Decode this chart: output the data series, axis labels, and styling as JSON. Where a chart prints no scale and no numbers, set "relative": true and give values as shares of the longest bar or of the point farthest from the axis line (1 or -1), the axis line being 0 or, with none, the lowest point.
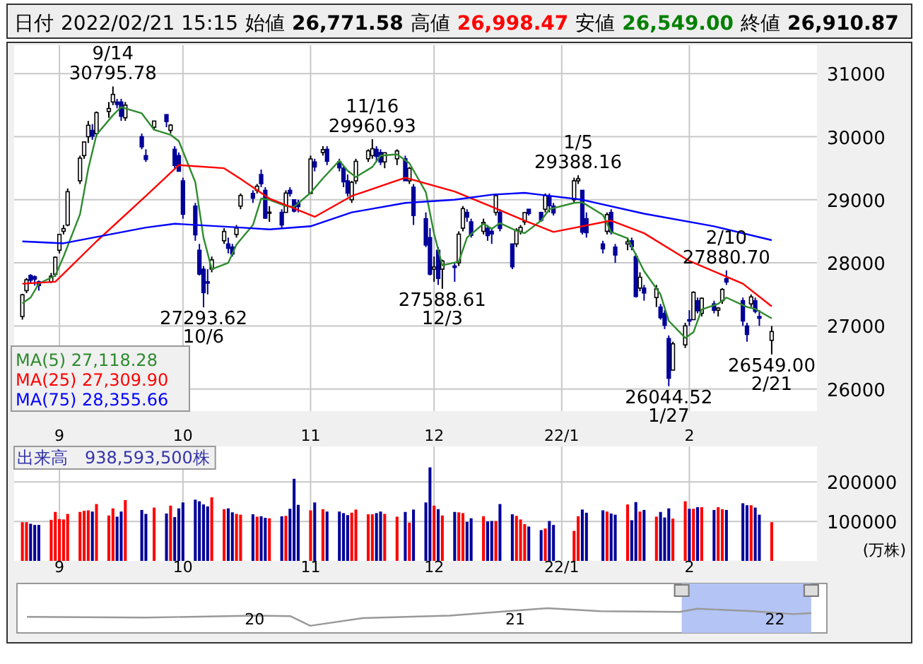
{
  "chart_data": [
    {
      "type": "candlestick",
      "annotations": [
        "日付",
        "2022/02/21 15:15",
        "始値",
        "26,771.58",
        "高値",
        "26,998.47",
        "安値",
        "26,549.00",
        "終値",
        "26,910.87",
        {
          "text": "9/14\n30795.78",
          "x": "2021-09-14",
          "y": 30795.78
        },
        {
          "text": "27293.62\n10/6",
          "x": "2021-10-06",
          "y": 27293.62
        },
        {
          "text": "11/16\n29960.93",
          "x": "2021-11-16",
          "y": 29960.93
        },
        {
          "text": "27588.61\n12/3",
          "x": "2021-12-03",
          "y": 27588.61
        },
        {
          "text": "1/5\n29388.16",
          "x": "2022-01-05",
          "y": 29388.16
        },
        {
          "text": "26044.52\n1/27",
          "x": "2022-01-27",
          "y": 26044.52
        },
        {
          "text": "2/10\n27880.70",
          "x": "2022-02-10",
          "y": 27880.7
        },
        {
          "text": "26549.00\n2/21",
          "x": "2022-02-21",
          "y": 26549.0
        }
      ],
      "x": [
        "2021-08-23",
        "2021-08-24",
        "2021-08-25",
        "2021-08-26",
        "2021-08-27",
        "2021-08-30",
        "2021-08-31",
        "2021-09-01",
        "2021-09-02",
        "2021-09-03",
        "2021-09-06",
        "2021-09-07",
        "2021-09-08",
        "2021-09-09",
        "2021-09-10",
        "2021-09-13",
        "2021-09-14",
        "2021-09-15",
        "2021-09-16",
        "2021-09-17",
        "2021-09-21",
        "2021-09-22",
        "2021-09-24",
        "2021-09-27",
        "2021-09-28",
        "2021-09-29",
        "2021-09-30",
        "2021-10-01",
        "2021-10-04",
        "2021-10-05",
        "2021-10-06",
        "2021-10-07",
        "2021-10-08",
        "2021-10-11",
        "2021-10-12",
        "2021-10-13",
        "2021-10-14",
        "2021-10-15",
        "2021-10-18",
        "2021-10-19",
        "2021-10-20",
        "2021-10-21",
        "2021-10-22",
        "2021-10-25",
        "2021-10-26",
        "2021-10-27",
        "2021-10-28",
        "2021-10-29",
        "2021-11-01",
        "2021-11-02",
        "2021-11-04",
        "2021-11-05",
        "2021-11-08",
        "2021-11-09",
        "2021-11-10",
        "2021-11-11",
        "2021-11-12",
        "2021-11-15",
        "2021-11-16",
        "2021-11-17",
        "2021-11-18",
        "2021-11-19",
        "2021-11-22",
        "2021-11-24",
        "2021-11-25",
        "2021-11-26",
        "2021-11-29",
        "2021-11-30",
        "2021-12-01",
        "2021-12-02",
        "2021-12-03",
        "2021-12-06",
        "2021-12-07",
        "2021-12-08",
        "2021-12-09",
        "2021-12-10",
        "2021-12-13",
        "2021-12-14",
        "2021-12-15",
        "2021-12-16",
        "2021-12-17",
        "2021-12-20",
        "2021-12-21",
        "2021-12-22",
        "2021-12-23",
        "2021-12-24",
        "2021-12-27",
        "2021-12-28",
        "2021-12-29",
        "2021-12-30",
        "2022-01-04",
        "2022-01-05",
        "2022-01-06",
        "2022-01-07",
        "2022-01-11",
        "2022-01-12",
        "2022-01-13",
        "2022-01-14",
        "2022-01-17",
        "2022-01-18",
        "2022-01-19",
        "2022-01-20",
        "2022-01-21",
        "2022-01-24",
        "2022-01-25",
        "2022-01-26",
        "2022-01-27",
        "2022-01-28",
        "2022-01-31",
        "2022-02-01",
        "2022-02-02",
        "2022-02-03",
        "2022-02-04",
        "2022-02-07",
        "2022-02-08",
        "2022-02-09",
        "2022-02-10",
        "2022-02-14",
        "2022-02-15",
        "2022-02-16",
        "2022-02-17",
        "2022-02-18",
        "2022-02-21"
      ],
      "ohlc": [
        [
          27150,
          27510,
          27100,
          27494
        ],
        [
          27560,
          27760,
          27520,
          27732
        ],
        [
          27800,
          27820,
          27680,
          27724
        ],
        [
          27780,
          27800,
          27640,
          27742
        ],
        [
          27700,
          27720,
          27560,
          27641
        ],
        [
          27700,
          27840,
          27680,
          27789
        ],
        [
          27820,
          28100,
          27780,
          28089
        ],
        [
          28200,
          28460,
          28150,
          28451
        ],
        [
          28500,
          28600,
          28450,
          28543
        ],
        [
          28600,
          29180,
          28580,
          29128
        ],
        [
          29300,
          29700,
          29250,
          29660
        ],
        [
          29700,
          29920,
          29650,
          29916
        ],
        [
          30000,
          30250,
          29900,
          30181
        ],
        [
          30100,
          30200,
          29950,
          30008
        ],
        [
          30050,
          30400,
          30000,
          30381
        ],
        [
          30400,
          30550,
          30300,
          30447
        ],
        [
          30550,
          30795.78,
          30500,
          30670
        ],
        [
          30550,
          30600,
          30450,
          30511
        ],
        [
          30550,
          30600,
          30250,
          30323
        ],
        [
          30300,
          30550,
          30250,
          30500
        ],
        [
          30000,
          30050,
          29800,
          29839
        ],
        [
          29700,
          29800,
          29600,
          29639
        ],
        [
          30150,
          30250,
          30100,
          30248
        ],
        [
          30350,
          30350,
          30150,
          30240
        ],
        [
          30100,
          30200,
          30050,
          30183
        ],
        [
          29800,
          29850,
          29500,
          29544
        ],
        [
          29700,
          29750,
          29450,
          29452
        ],
        [
          29300,
          29350,
          28700,
          28771
        ],
        [
          28900,
          28950,
          28350,
          28444
        ],
        [
          28200,
          28300,
          27800,
          27822
        ],
        [
          27900,
          27950,
          27293.62,
          27528
        ],
        [
          27700,
          27900,
          27500,
          27678
        ],
        [
          27900,
          28100,
          27850,
          28048
        ],
        [
          28350,
          28550,
          28300,
          28498
        ],
        [
          28300,
          28400,
          28150,
          28230
        ],
        [
          28250,
          28300,
          28100,
          28140
        ],
        [
          28450,
          28600,
          28400,
          28550
        ],
        [
          28900,
          29100,
          28850,
          29068
        ],
        [
          29100,
          29150,
          28950,
          29025
        ],
        [
          29150,
          29250,
          29100,
          29215
        ],
        [
          29400,
          29480,
          29200,
          29255
        ],
        [
          29150,
          29200,
          28700,
          28708
        ],
        [
          28800,
          28900,
          28650,
          28804
        ],
        [
          28800,
          28850,
          28550,
          28600
        ],
        [
          28800,
          29150,
          28800,
          29106
        ],
        [
          29150,
          29200,
          29050,
          29098
        ],
        [
          29000,
          29000,
          28800,
          28820
        ],
        [
          28950,
          29000,
          28800,
          28892
        ],
        [
          29100,
          29700,
          29100,
          29647
        ],
        [
          29600,
          29650,
          29450,
          29520
        ],
        [
          29750,
          29850,
          29700,
          29794
        ],
        [
          29800,
          29850,
          29550,
          29611
        ],
        [
          29600,
          29650,
          29450,
          29507
        ],
        [
          29500,
          29550,
          29200,
          29285
        ],
        [
          29300,
          29400,
          29050,
          29106
        ],
        [
          29000,
          29300,
          28950,
          29277
        ],
        [
          29300,
          29650,
          29250,
          29609
        ],
        [
          29650,
          29800,
          29600,
          29776
        ],
        [
          29700,
          29960.93,
          29650,
          29808
        ],
        [
          29800,
          29850,
          29600,
          29688
        ],
        [
          29750,
          29800,
          29550,
          29598
        ],
        [
          29600,
          29750,
          29500,
          29745
        ],
        [
          29650,
          29800,
          29550,
          29774
        ],
        [
          29650,
          29700,
          29300,
          29302
        ],
        [
          29300,
          29520,
          29250,
          29499
        ],
        [
          29200,
          29250,
          28600,
          28751
        ],
        [
          28700,
          28800,
          28250,
          28283
        ],
        [
          28400,
          28550,
          27800,
          27821
        ],
        [
          27900,
          28100,
          27700,
          27935
        ],
        [
          28200,
          28250,
          27650,
          27753
        ],
        [
          27900,
          28050,
          27588.61,
          28029
        ],
        [
          27950,
          28000,
          27700,
          27927
        ],
        [
          28000,
          28500,
          27950,
          28455
        ],
        [
          28550,
          28900,
          28500,
          28860
        ],
        [
          28800,
          28850,
          28650,
          28725
        ],
        [
          28650,
          28700,
          28400,
          28437
        ],
        [
          28500,
          28700,
          28450,
          28640
        ],
        [
          28550,
          28600,
          28350,
          28432
        ],
        [
          28500,
          28550,
          28300,
          28459
        ],
        [
          28800,
          29100,
          28750,
          29066
        ],
        [
          28800,
          28850,
          28500,
          28545
        ],
        [
          28300,
          28300,
          27900,
          27937
        ],
        [
          28300,
          28550,
          28250,
          28517
        ],
        [
          28500,
          28600,
          28450,
          28562
        ],
        [
          28650,
          28800,
          28600,
          28798
        ],
        [
          28850,
          28850,
          28750,
          28782
        ],
        [
          28800,
          28800,
          28650,
          28676
        ],
        [
          28850,
          29100,
          28800,
          29069
        ],
        [
          29050,
          29100,
          28800,
          28906
        ],
        [
          28900,
          28950,
          28750,
          28791
        ],
        [
          29000,
          29350,
          28950,
          29301
        ],
        [
          29300,
          29388.16,
          29250,
          29332
        ],
        [
          29150,
          29150,
          28450,
          28487
        ],
        [
          28700,
          28800,
          28400,
          28478
        ],
        [
          28300,
          28350,
          28150,
          28222
        ],
        [
          28500,
          28800,
          28450,
          28765
        ],
        [
          28800,
          28850,
          28450,
          28489
        ],
        [
          28250,
          28300,
          28000,
          28124
        ],
        [
          28300,
          28400,
          28200,
          28333
        ],
        [
          28350,
          28400,
          28200,
          28257
        ],
        [
          28100,
          28150,
          27450,
          27467
        ],
        [
          27600,
          27850,
          27550,
          27772
        ],
        [
          27600,
          27650,
          27400,
          27522
        ],
        [
          27450,
          27650,
          27300,
          27588
        ],
        [
          27300,
          27350,
          27100,
          27131
        ],
        [
          27200,
          27250,
          26950,
          27011
        ],
        [
          26800,
          26850,
          26044.52,
          26170
        ],
        [
          26300,
          26750,
          26300,
          26717
        ],
        [
          26700,
          27050,
          26650,
          27001
        ],
        [
          27100,
          27250,
          27000,
          27078
        ],
        [
          27100,
          27550,
          27100,
          27533
        ],
        [
          27400,
          27450,
          27200,
          27241
        ],
        [
          27200,
          27450,
          27150,
          27439
        ],
        [
          27350,
          27400,
          27200,
          27248
        ],
        [
          27250,
          27300,
          27150,
          27284
        ],
        [
          27400,
          27600,
          27350,
          27579
        ],
        [
          27750,
          27880.7,
          27650,
          27696
        ],
        [
          27400,
          27450,
          27000,
          27079
        ],
        [
          27000,
          27050,
          26750,
          26865
        ],
        [
          27350,
          27500,
          27300,
          27460
        ],
        [
          27400,
          27450,
          27200,
          27232
        ],
        [
          27150,
          27250,
          27000,
          27122
        ],
        [
          26771.58,
          26998.47,
          26549.0,
          26910.87
        ]
      ],
      "series": [
        {
          "name": "MA(5)   27,118.28",
          "type": "line",
          "color": "#2e8b2e",
          "x": [
            "2021-08-23",
            "2021-08-25",
            "2021-08-27",
            "2021-08-31",
            "2021-09-02",
            "2021-09-06",
            "2021-09-08",
            "2021-09-10",
            "2021-09-14",
            "2021-09-16",
            "2021-09-21",
            "2021-09-24",
            "2021-09-28",
            "2021-09-30",
            "2021-10-04",
            "2021-10-06",
            "2021-10-08",
            "2021-10-12",
            "2021-10-14",
            "2021-10-18",
            "2021-10-20",
            "2021-10-22",
            "2021-10-26",
            "2021-10-28",
            "2021-11-01",
            "2021-11-04",
            "2021-11-08",
            "2021-11-10",
            "2021-11-12",
            "2021-11-16",
            "2021-11-18",
            "2021-11-22",
            "2021-11-25",
            "2021-11-29",
            "2021-12-01",
            "2021-12-03",
            "2021-12-07",
            "2021-12-09",
            "2021-12-13",
            "2021-12-15",
            "2021-12-17",
            "2021-12-21",
            "2021-12-23",
            "2021-12-27",
            "2021-12-29",
            "2022-01-04",
            "2022-01-06",
            "2022-01-11",
            "2022-01-13",
            "2022-01-17",
            "2022-01-19",
            "2022-01-21",
            "2022-01-25",
            "2022-01-27",
            "2022-01-31",
            "2022-02-02",
            "2022-02-04",
            "2022-02-08",
            "2022-02-10",
            "2022-02-15",
            "2022-02-17",
            "2022-02-21"
          ],
          "values": [
            27360,
            27450,
            27670,
            27800,
            28100,
            28770,
            29490,
            30030,
            30340,
            30470,
            30370,
            30110,
            30030,
            29930,
            29280,
            28400,
            27900,
            28000,
            28290,
            28600,
            29020,
            29000,
            28900,
            28890,
            29110,
            29340,
            29620,
            29460,
            29360,
            29520,
            29700,
            29720,
            29580,
            29120,
            28460,
            27960,
            28020,
            28400,
            28620,
            28540,
            28630,
            28510,
            28470,
            28670,
            28850,
            28950,
            28960,
            28760,
            28490,
            28390,
            28130,
            27870,
            27500,
            27080,
            26810,
            26900,
            27260,
            27350,
            27450,
            27300,
            27270,
            27120
          ]
        },
        {
          "name": "MA(25) 27,309.90",
          "type": "line",
          "color": "#ff0000",
          "x": [
            "2021-08-23",
            "2021-08-31",
            "2021-09-10",
            "2021-09-22",
            "2021-09-30",
            "2021-10-11",
            "2021-10-15",
            "2021-10-22",
            "2021-10-27",
            "2021-11-02",
            "2021-11-11",
            "2021-11-24",
            "2021-12-06",
            "2021-12-15",
            "2021-12-23",
            "2021-12-30",
            "2022-01-13",
            "2022-01-21",
            "2022-02-01",
            "2022-02-14",
            "2022-02-21"
          ],
          "values": [
            27670,
            27700,
            28340,
            29060,
            29550,
            29500,
            29330,
            29020,
            28890,
            28730,
            29060,
            29350,
            29130,
            28890,
            28670,
            28490,
            28670,
            28470,
            28030,
            27670,
            27310
          ]
        },
        {
          "name": "MA(75) 28,355.66",
          "type": "line",
          "color": "#0000ff",
          "x": [
            "2021-08-23",
            "2021-09-02",
            "2021-09-22",
            "2021-09-29",
            "2021-10-15",
            "2021-10-22",
            "2021-11-01",
            "2021-11-11",
            "2021-11-24",
            "2021-12-06",
            "2021-12-15",
            "2021-12-23",
            "2022-01-06",
            "2022-01-21",
            "2022-02-07",
            "2022-02-21"
          ],
          "values": [
            28340,
            28310,
            28560,
            28620,
            28560,
            28530,
            28580,
            28800,
            28950,
            29000,
            29080,
            29110,
            29000,
            28780,
            28580,
            28360
          ]
        }
      ],
      "ylim": [
        25650,
        31450
      ],
      "xlim": [
        "2021-08-21",
        "2022-03-04"
      ],
      "yticks": [
        26000,
        27000,
        28000,
        29000,
        30000,
        31000
      ],
      "xticks": [
        {
          "value": "2021-09-01",
          "label": "9"
        },
        {
          "value": "2021-10-01",
          "label": "10"
        },
        {
          "value": "2021-11-01",
          "label": "11"
        },
        {
          "value": "2021-12-01",
          "label": "12"
        },
        {
          "value": "2022-01-01",
          "label": "22/1"
        },
        {
          "value": "2022-02-01",
          "label": "2"
        }
      ],
      "grid": true,
      "legend": "bottom left"
    },
    {
      "type": "bar",
      "title": "出来高　938,593,500株",
      "ylabel": "(万株)",
      "x": [
        "2021-08-23",
        "2021-08-24",
        "2021-08-25",
        "2021-08-26",
        "2021-08-27",
        "2021-08-30",
        "2021-08-31",
        "2021-09-01",
        "2021-09-02",
        "2021-09-03",
        "2021-09-06",
        "2021-09-07",
        "2021-09-08",
        "2021-09-09",
        "2021-09-10",
        "2021-09-13",
        "2021-09-14",
        "2021-09-15",
        "2021-09-16",
        "2021-09-17",
        "2021-09-21",
        "2021-09-22",
        "2021-09-24",
        "2021-09-27",
        "2021-09-28",
        "2021-09-29",
        "2021-09-30",
        "2021-10-01",
        "2021-10-04",
        "2021-10-05",
        "2021-10-06",
        "2021-10-07",
        "2021-10-08",
        "2021-10-11",
        "2021-10-12",
        "2021-10-13",
        "2021-10-14",
        "2021-10-15",
        "2021-10-18",
        "2021-10-19",
        "2021-10-20",
        "2021-10-21",
        "2021-10-22",
        "2021-10-25",
        "2021-10-26",
        "2021-10-27",
        "2021-10-28",
        "2021-10-29",
        "2021-11-01",
        "2021-11-02",
        "2021-11-04",
        "2021-11-05",
        "2021-11-08",
        "2021-11-09",
        "2021-11-10",
        "2021-11-11",
        "2021-11-12",
        "2021-11-15",
        "2021-11-16",
        "2021-11-17",
        "2021-11-18",
        "2021-11-19",
        "2021-11-22",
        "2021-11-24",
        "2021-11-25",
        "2021-11-26",
        "2021-11-29",
        "2021-11-30",
        "2021-12-01",
        "2021-12-02",
        "2021-12-03",
        "2021-12-06",
        "2021-12-07",
        "2021-12-08",
        "2021-12-09",
        "2021-12-10",
        "2021-12-13",
        "2021-12-14",
        "2021-12-15",
        "2021-12-16",
        "2021-12-17",
        "2021-12-20",
        "2021-12-21",
        "2021-12-22",
        "2021-12-23",
        "2021-12-24",
        "2021-12-27",
        "2021-12-28",
        "2021-12-29",
        "2021-12-30",
        "2022-01-04",
        "2022-01-05",
        "2022-01-06",
        "2022-01-07",
        "2022-01-11",
        "2022-01-12",
        "2022-01-13",
        "2022-01-14",
        "2022-01-17",
        "2022-01-18",
        "2022-01-19",
        "2022-01-20",
        "2022-01-21",
        "2022-01-24",
        "2022-01-25",
        "2022-01-26",
        "2022-01-27",
        "2022-01-28",
        "2022-01-31",
        "2022-02-01",
        "2022-02-02",
        "2022-02-03",
        "2022-02-04",
        "2022-02-07",
        "2022-02-08",
        "2022-02-09",
        "2022-02-10",
        "2022-02-14",
        "2022-02-15",
        "2022-02-16",
        "2022-02-17",
        "2022-02-18",
        "2022-02-21"
      ],
      "values": [
        98000,
        98000,
        94000,
        91000,
        91000,
        104000,
        124000,
        106000,
        105000,
        119000,
        124000,
        127000,
        128000,
        125000,
        144000,
        115000,
        133000,
        112000,
        125000,
        154000,
        129000,
        119000,
        135000,
        120000,
        140000,
        111000,
        133000,
        148000,
        155000,
        151000,
        143000,
        138000,
        161000,
        131000,
        133000,
        123000,
        119000,
        117000,
        118000,
        112000,
        113000,
        109000,
        108000,
        113000,
        114000,
        132000,
        208000,
        142000,
        128000,
        148000,
        131000,
        125000,
        125000,
        121000,
        116000,
        122000,
        130000,
        118000,
        118000,
        121000,
        125000,
        119000,
        112000,
        124000,
        97000,
        130000,
        148000,
        237000,
        140000,
        131000,
        115000,
        124000,
        123000,
        121000,
        99000,
        108000,
        113000,
        100000,
        101000,
        101000,
        144000,
        118000,
        114000,
        105000,
        93000,
        87000,
        78000,
        82000,
        101000,
        91000,
        76000,
        113000,
        130000,
        122000,
        128000,
        125000,
        120000,
        117000,
        143000,
        103000,
        149000,
        125000,
        129000,
        112000,
        124000,
        110000,
        133000,
        107000,
        151000,
        132000,
        132000,
        136000,
        136000,
        129000,
        136000,
        131000,
        129000,
        146000,
        141000,
        141000,
        135000,
        117000,
        98000
      ],
      "colors": [
        "#ff0000",
        "#ff0000",
        "#000099",
        "#000099",
        "#000099",
        "#ff0000",
        "#ff0000",
        "#ff0000",
        "#ff0000",
        "#ff0000",
        "#ff0000",
        "#ff0000",
        "#ff0000",
        "#000099",
        "#ff0000",
        "#ff0000",
        "#ff0000",
        "#000099",
        "#000099",
        "#ff0000",
        "#000099",
        "#000099",
        "#ff0000",
        "#000099",
        "#ff0000",
        "#000099",
        "#000099",
        "#000099",
        "#000099",
        "#000099",
        "#000099",
        "#000099",
        "#ff0000",
        "#ff0000",
        "#000099",
        "#000099",
        "#ff0000",
        "#ff0000",
        "#000099",
        "#ff0000",
        "#000099",
        "#000099",
        "#ff0000",
        "#000099",
        "#ff0000",
        "#000099",
        "#000099",
        "#000099",
        "#ff0000",
        "#000099",
        "#ff0000",
        "#000099",
        "#000099",
        "#000099",
        "#000099",
        "#ff0000",
        "#ff0000",
        "#ff0000",
        "#ff0000",
        "#000099",
        "#000099",
        "#ff0000",
        "#ff0000",
        "#000099",
        "#ff0000",
        "#000099",
        "#000099",
        "#000099",
        "#ff0000",
        "#000099",
        "#ff0000",
        "#000099",
        "#ff0000",
        "#ff0000",
        "#000099",
        "#000099",
        "#ff0000",
        "#000099",
        "#000099",
        "#ff0000",
        "#000099",
        "#000099",
        "#ff0000",
        "#ff0000",
        "#ff0000",
        "#000099",
        "#000099",
        "#ff0000",
        "#000099",
        "#000099",
        "#ff0000",
        "#ff0000",
        "#000099",
        "#000099",
        "#000099",
        "#ff0000",
        "#000099",
        "#000099",
        "#ff0000",
        "#000099",
        "#000099",
        "#ff0000",
        "#000099",
        "#ff0000",
        "#000099",
        "#000099",
        "#000099",
        "#ff0000",
        "#ff0000",
        "#000099",
        "#ff0000",
        "#000099",
        "#ff0000",
        "#000099",
        "#ff0000",
        "#ff0000",
        "#000099",
        "#000099",
        "#000099",
        "#ff0000",
        "#000099",
        "#000099",
        "#ff0000"
      ],
      "ylim": [
        0,
        290000
      ],
      "yticks": [
        100000,
        200000
      ],
      "xlim": [
        "2021-08-21",
        "2022-03-04"
      ],
      "xticks": [
        {
          "value": "2021-09-01",
          "label": "9"
        },
        {
          "value": "2021-10-01",
          "label": "10"
        },
        {
          "value": "2021-11-01",
          "label": "11"
        },
        {
          "value": "2021-12-01",
          "label": "12"
        },
        {
          "value": "2022-01-01",
          "label": "22/1"
        },
        {
          "value": "2022-02-01",
          "label": "2"
        }
      ],
      "grid": true
    },
    {
      "type": "line",
      "relative": true,
      "color": "#999999",
      "x": [
        "2019-02-15",
        "2019-08-01",
        "2020-01-01",
        "2020-02-20",
        "2020-03-19",
        "2020-06-01",
        "2020-10-01",
        "2021-02-15",
        "2021-05-01",
        "2021-08-20",
        "2021-09-14",
        "2021-12-01",
        "2022-01-27",
        "2022-02-21"
      ],
      "values": [
        0.65,
        0.62,
        0.7,
        0.68,
        0.29,
        0.6,
        0.7,
        1,
        0.88,
        0.85,
        0.98,
        0.88,
        0.76,
        0.8
      ],
      "xlim": [
        "2019-02-01",
        "2022-03-15"
      ],
      "xticks": [
        {
          "value": "2020-01-01",
          "label": "20"
        },
        {
          "value": "2021-01-01",
          "label": "21"
        },
        {
          "value": "2022-01-01",
          "label": "22"
        }
      ],
      "bands": [
        {
          "axis": "x",
          "from": "2021-08-23",
          "to": "2022-02-21",
          "color": "#b4c4f4"
        }
      ]
    }
  ]
}
